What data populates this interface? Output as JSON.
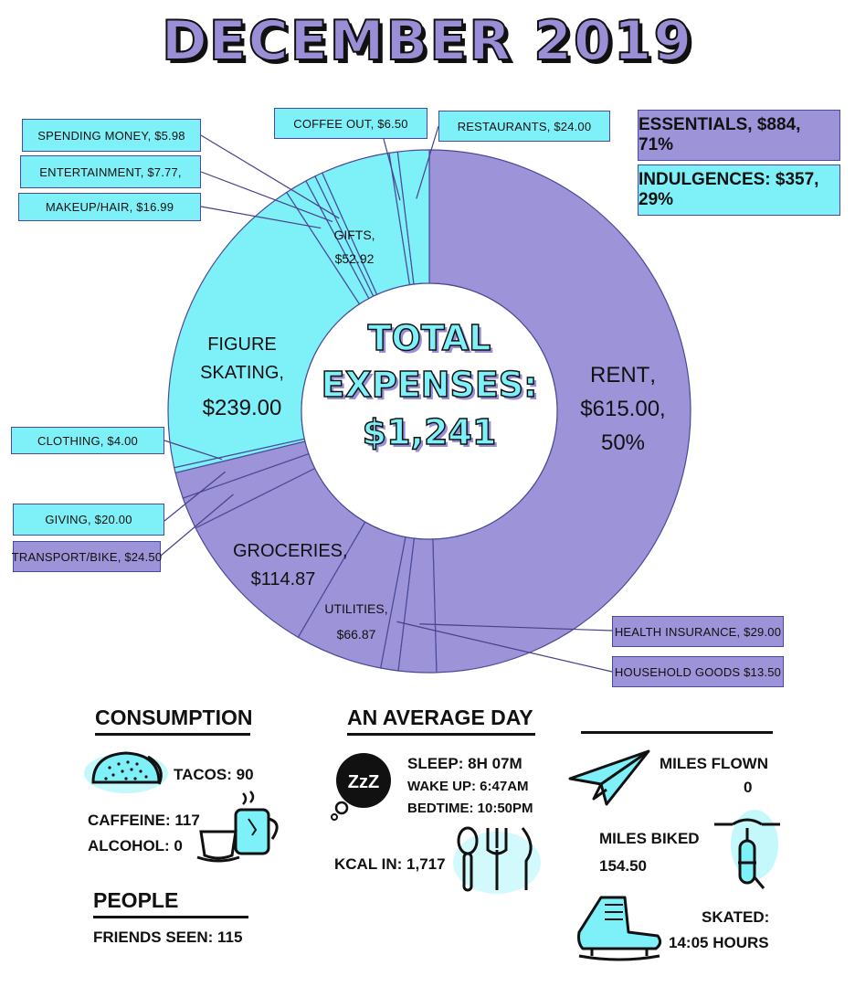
{
  "title": "DECEMBER 2019",
  "center": {
    "line1": "TOTAL",
    "line2": "EXPENSES:",
    "line3": "$1,241"
  },
  "summary": {
    "essentials": "ESSENTIALS, $884, 71%",
    "indulgences": "INDULGENCES: $357, 29%"
  },
  "colors": {
    "essentials": "#9c93d8",
    "indulgences": "#7ef0f7",
    "outline": "#4a4a9a"
  },
  "chart_data": {
    "type": "pie",
    "title": "DECEMBER 2019",
    "slices": [
      {
        "label": "RENT",
        "value": 615.0,
        "display": "$615.00,",
        "percent": "50%",
        "group": "essentials"
      },
      {
        "label": "HEALTH INSURANCE",
        "value": 29.0,
        "display": "HEALTH INSURANCE, $29.00",
        "group": "essentials"
      },
      {
        "label": "HOUSEHOLD GOODS",
        "value": 13.5,
        "display": "HOUSEHOLD GOODS $13.50",
        "group": "essentials"
      },
      {
        "label": "UTILITIES",
        "value": 66.87,
        "display": "$66.87",
        "group": "essentials"
      },
      {
        "label": "GROCERIES",
        "value": 114.87,
        "display": "$114.87",
        "group": "essentials"
      },
      {
        "label": "TRANSPORT/BIKE",
        "value": 24.5,
        "display": "TRANSPORT/BIKE, $24.50",
        "group": "essentials"
      },
      {
        "label": "GIVING",
        "value": 20.0,
        "display": "GIVING, $20.00",
        "group": "essentials"
      },
      {
        "label": "CLOTHING",
        "value": 4.0,
        "display": "CLOTHING, $4.00",
        "group": "indulgences"
      },
      {
        "label": "FIGURE SKATING",
        "value": 239.0,
        "display": "$239.00",
        "group": "indulgences"
      },
      {
        "label": "MAKEUP/HAIR",
        "value": 16.99,
        "display": "MAKEUP/HAIR, $16.99",
        "group": "indulgences"
      },
      {
        "label": "ENTERTAINMENT",
        "value": 7.77,
        "display": "ENTERTAINMENT, $7.77,",
        "group": "indulgences"
      },
      {
        "label": "SPENDING MONEY",
        "value": 5.98,
        "display": "SPENDING MONEY, $5.98",
        "group": "indulgences"
      },
      {
        "label": "GIFTS",
        "value": 52.92,
        "display": "$52.92",
        "group": "indulgences"
      },
      {
        "label": "COFFEE OUT",
        "value": 6.5,
        "display": "COFFEE OUT, $6.50",
        "group": "indulgences"
      },
      {
        "label": "RESTAURANTS",
        "value": 24.0,
        "display": "RESTAURANTS, $24.00",
        "group": "indulgences"
      }
    ]
  },
  "consumption": {
    "heading": "CONSUMPTION",
    "tacos": "TACOS: 90",
    "caffeine": "CAFFEINE: 117",
    "alcohol": "ALCOHOL: 0"
  },
  "people": {
    "heading": "PEOPLE",
    "friends": "FRIENDS SEEN:  115"
  },
  "average_day": {
    "heading": "AN AVERAGE DAY",
    "sleep": "SLEEP:  8H 07M",
    "wake": "WAKE UP: 6:47AM",
    "bedtime": "BEDTIME: 10:50PM",
    "kcal": "KCAL IN: 1,717",
    "zzz": "ZzZ"
  },
  "travel": {
    "flown_label": "MILES FLOWN",
    "flown_value": "0",
    "biked_label": "MILES BIKED",
    "biked_value": "154.50",
    "skated_label": "SKATED:",
    "skated_value": "14:05 HOURS"
  }
}
